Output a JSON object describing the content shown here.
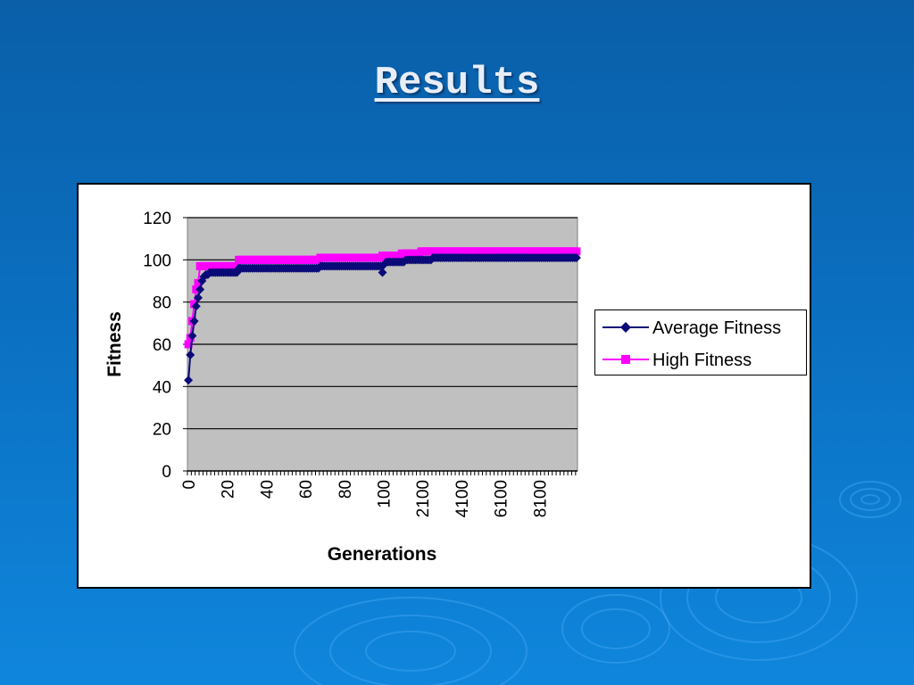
{
  "slide": {
    "title": "Results"
  },
  "chart_data": {
    "type": "line",
    "title": "",
    "xlabel": "Generations",
    "ylabel": "Fitness",
    "ylim": [
      0,
      120
    ],
    "yticks": [
      0,
      20,
      40,
      60,
      80,
      100,
      120
    ],
    "xtick_labels": [
      "0",
      "20",
      "40",
      "60",
      "80",
      "100",
      "2100",
      "4100",
      "6100",
      "8100"
    ],
    "grid": "horizontal",
    "legend_position": "right",
    "series": [
      {
        "name": "Average Fitness",
        "color": "#0a0a78",
        "marker": "diamond",
        "values": [
          43,
          55,
          64,
          71,
          78,
          82,
          86,
          90,
          92,
          93,
          93,
          94,
          94,
          94,
          94,
          94,
          94,
          94,
          94,
          94,
          94,
          94,
          94,
          94,
          94,
          94,
          96,
          96,
          96,
          96,
          96,
          96,
          96,
          96,
          96,
          96,
          96,
          96,
          96,
          96,
          96,
          96,
          96,
          96,
          96,
          96,
          96,
          96,
          96,
          96,
          96,
          96,
          96,
          96,
          96,
          96,
          96,
          96,
          96,
          96,
          96,
          96,
          96,
          96,
          96,
          96,
          96,
          96,
          97,
          97,
          97,
          97,
          97,
          97,
          97,
          97,
          97,
          97,
          97,
          97,
          97,
          97,
          97,
          97,
          97,
          97,
          97,
          97,
          97,
          97,
          97,
          97,
          97,
          97,
          97,
          97,
          97,
          97,
          97,
          97,
          94,
          98,
          99,
          99,
          99,
          99,
          99,
          99,
          99,
          99,
          99,
          99,
          100,
          100,
          100,
          100,
          100,
          100,
          100,
          100,
          100,
          100,
          100,
          100,
          100,
          100,
          101,
          101,
          101,
          101,
          101,
          101,
          101,
          101,
          101,
          101,
          101,
          101,
          101,
          101,
          101,
          101,
          101,
          101,
          101,
          101,
          101,
          101,
          101,
          101,
          101,
          101,
          101,
          101,
          101,
          101,
          101,
          101,
          101,
          101,
          101,
          101,
          101,
          101,
          101,
          101,
          101,
          101,
          101,
          101,
          101,
          101,
          101,
          101,
          101,
          101,
          101,
          101,
          101,
          101,
          101,
          101,
          101,
          101,
          101,
          101,
          101,
          101,
          101,
          101,
          101,
          101,
          101,
          101,
          101,
          101,
          101,
          101,
          101,
          101,
          101
        ]
      },
      {
        "name": "High Fitness",
        "color": "#ff00ff",
        "marker": "square",
        "values": [
          60,
          63,
          71,
          79,
          86,
          89,
          97,
          97,
          97,
          97,
          97,
          97,
          97,
          97,
          97,
          97,
          97,
          97,
          97,
          97,
          97,
          97,
          97,
          97,
          97,
          97,
          100,
          100,
          100,
          100,
          100,
          100,
          100,
          100,
          100,
          100,
          100,
          100,
          100,
          100,
          100,
          100,
          100,
          100,
          100,
          100,
          100,
          100,
          100,
          100,
          100,
          100,
          100,
          100,
          100,
          100,
          100,
          100,
          100,
          100,
          100,
          100,
          100,
          100,
          100,
          100,
          100,
          100,
          101,
          101,
          101,
          101,
          101,
          101,
          101,
          101,
          101,
          101,
          101,
          101,
          101,
          101,
          101,
          101,
          101,
          101,
          101,
          101,
          101,
          101,
          101,
          101,
          101,
          101,
          101,
          101,
          101,
          101,
          101,
          101,
          102,
          102,
          102,
          102,
          102,
          102,
          102,
          102,
          102,
          102,
          103,
          103,
          103,
          103,
          103,
          103,
          103,
          103,
          103,
          103,
          104,
          104,
          104,
          104,
          104,
          104,
          104,
          104,
          104,
          104,
          104,
          104,
          104,
          104,
          104,
          104,
          104,
          104,
          104,
          104,
          104,
          104,
          104,
          104,
          104,
          104,
          104,
          104,
          104,
          104,
          104,
          104,
          104,
          104,
          104,
          104,
          104,
          104,
          104,
          104,
          104,
          104,
          104,
          104,
          104,
          104,
          104,
          104,
          104,
          104,
          104,
          104,
          104,
          104,
          104,
          104,
          104,
          104,
          104,
          104,
          104,
          104,
          104,
          104,
          104,
          104,
          104,
          104,
          104,
          104,
          104,
          104,
          104,
          104,
          104,
          104,
          104,
          104,
          104,
          104,
          104
        ]
      }
    ]
  }
}
